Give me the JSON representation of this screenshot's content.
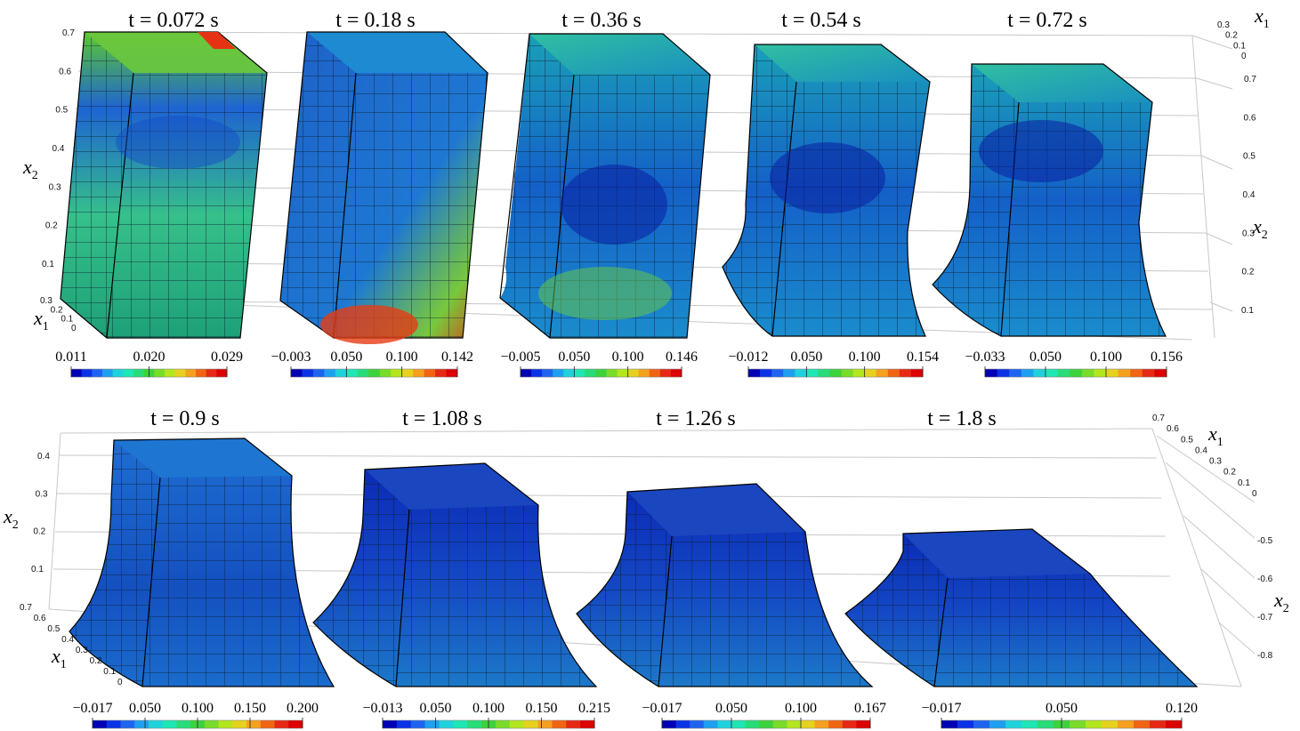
{
  "rows": [
    {
      "panels": [
        {
          "title": "t = 0.072 s",
          "colorbar": [
            "0.011",
            "0.020",
            "0.029"
          ]
        },
        {
          "title": "t = 0.18 s",
          "colorbar": [
            "−0.003",
            "0.050",
            "0.100",
            "0.142"
          ]
        },
        {
          "title": "t = 0.36 s",
          "colorbar": [
            "−0.005",
            "0.050",
            "0.100",
            "0.146"
          ]
        },
        {
          "title": "t = 0.54 s",
          "colorbar": [
            "−0.012",
            "0.050",
            "0.100",
            "0.154"
          ]
        },
        {
          "title": "t = 0.72 s",
          "colorbar": [
            "−0.033",
            "0.050",
            "0.100",
            "0.156"
          ]
        }
      ],
      "axes": {
        "left_x2_ticks": [
          "0.7",
          "0.6",
          "0.5",
          "0.4",
          "0.3",
          "0.2",
          "0.1"
        ],
        "left_x1_ticks": [
          "0.3",
          "0.2",
          "0.1",
          "0"
        ],
        "right_x2_ticks": [
          "0.7",
          "0.6",
          "0.5",
          "0.4",
          "0.3",
          "0.2",
          "0.1"
        ],
        "right_x1_ticks": [
          "0.3",
          "0.2",
          "0.1",
          "0"
        ]
      }
    },
    {
      "panels": [
        {
          "title": "t = 0.9 s",
          "colorbar": [
            "−0.017",
            "0.050",
            "0.100",
            "0.150",
            "0.200"
          ]
        },
        {
          "title": "t = 1.08 s",
          "colorbar": [
            "−0.013",
            "0.050",
            "0.100",
            "0.150",
            "0.215"
          ]
        },
        {
          "title": "t = 1.26 s",
          "colorbar": [
            "−0.017",
            "0.050",
            "0.100",
            "0.167"
          ]
        },
        {
          "title": "t = 1.8 s",
          "colorbar": [
            "−0.017",
            "0.050",
            "0.120"
          ]
        }
      ],
      "axes": {
        "left_x2_ticks": [
          "0.4",
          "0.3",
          "0.2",
          "0.1"
        ],
        "left_x1_ticks": [
          "0.7",
          "0.6",
          "0.5",
          "0.4",
          "0.3",
          "0.2",
          "0.1",
          "0"
        ],
        "right_x2_ticks": [
          "-0.5",
          "-0.6",
          "-0.7",
          "-0.8"
        ],
        "right_x1_ticks": [
          "0.7",
          "0.6",
          "0.5",
          "0.4",
          "0.3",
          "0.2",
          "0.1",
          "0"
        ]
      }
    }
  ],
  "axis_labels": {
    "x1": "x",
    "x1_sub": "1",
    "x2": "x",
    "x2_sub": "2"
  },
  "colormap": [
    "#0000b4",
    "#0a32e6",
    "#1e64f0",
    "#1ea0f0",
    "#1ed2dc",
    "#1ee6b4",
    "#28dc78",
    "#3cd23c",
    "#78dc28",
    "#b4e61e",
    "#e6d21e",
    "#f5a01e",
    "#f06414",
    "#e62814",
    "#dc0000"
  ]
}
